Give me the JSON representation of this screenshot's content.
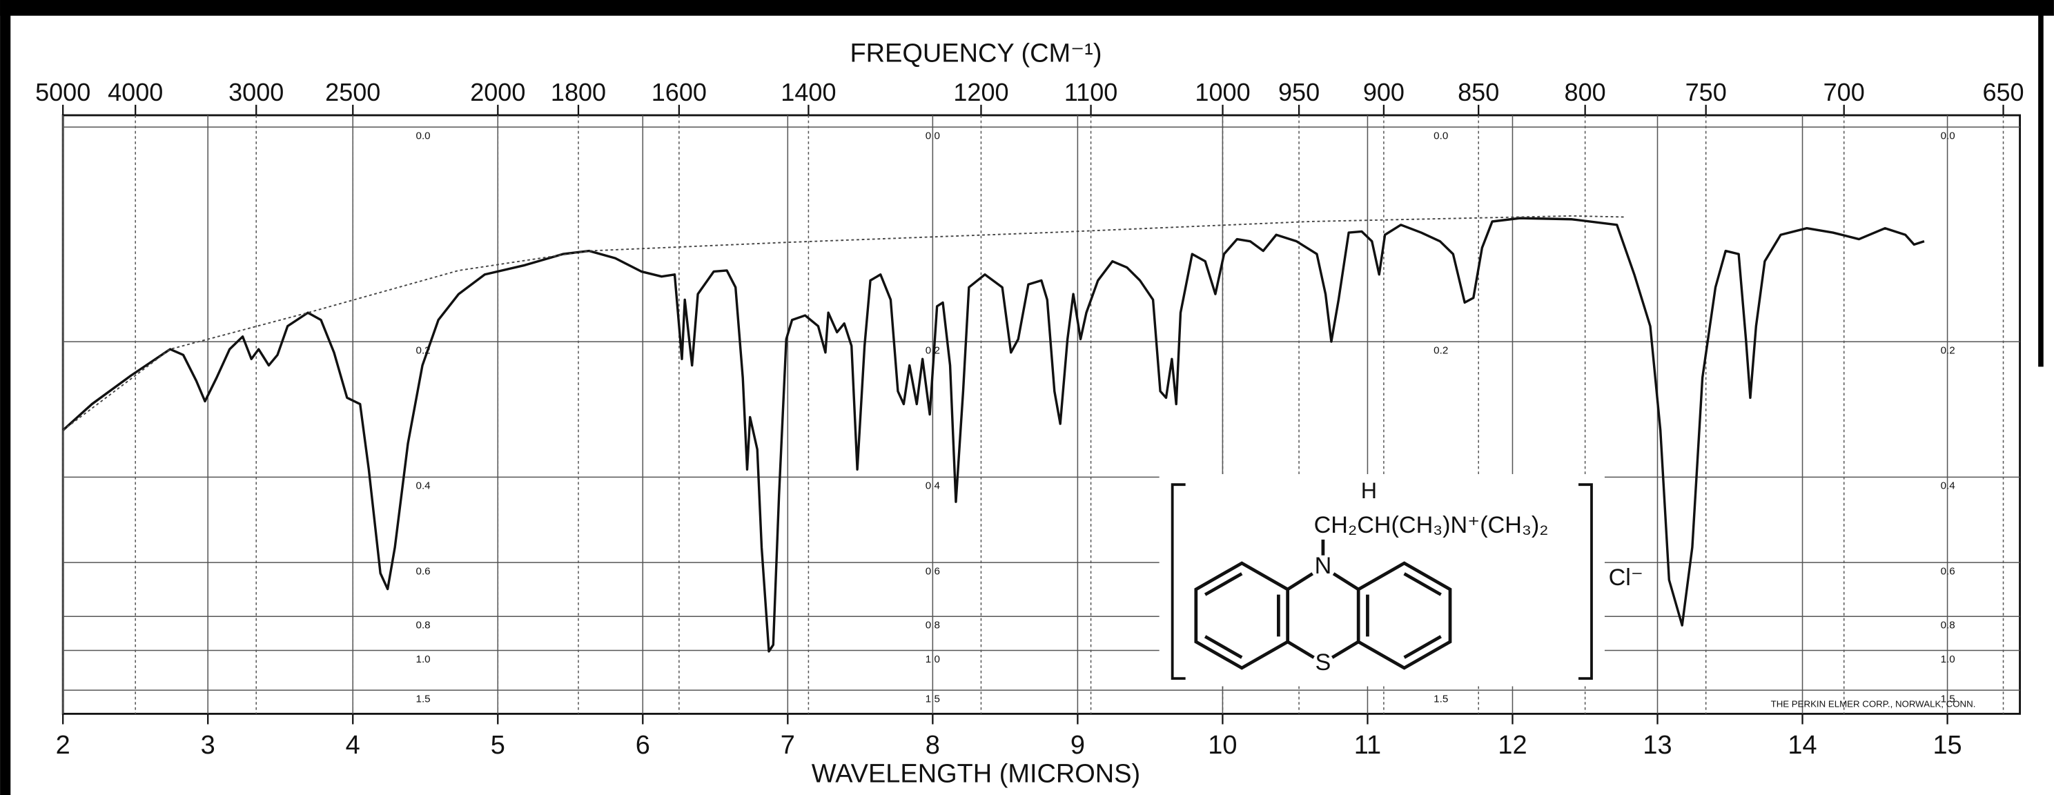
{
  "chart_data": {
    "type": "line",
    "title": "FREQUENCY (CM⁻¹)",
    "x_label": "WAVELENGTH (MICRONS)",
    "xlim": [
      2,
      15.5
    ],
    "xticks": [
      2,
      3,
      4,
      5,
      6,
      7,
      8,
      9,
      10,
      11,
      12,
      13,
      14,
      15
    ],
    "x2lim": [
      5000,
      645.2
    ],
    "x2ticks": [
      5000,
      4000,
      3000,
      2500,
      2000,
      1800,
      1600,
      1400,
      1200,
      1100,
      1000,
      950,
      900,
      850,
      800,
      750,
      700,
      650
    ],
    "x2_scale": "reciprocal",
    "ylim": [
      0,
      1.5
    ],
    "y_scale": "absorbance",
    "yticks": [
      {
        "value": 0,
        "label": "0.0"
      },
      0.2,
      0.4,
      0.6,
      0.8,
      {
        "value": 1,
        "label": "1.0"
      },
      {
        "value": 1.5,
        "label": "1.5"
      }
    ],
    "grid": true,
    "series": [
      {
        "color": "#111111",
        "x": [
          2.0,
          2.2,
          2.47,
          2.74,
          2.83,
          2.92,
          2.98,
          3.06,
          3.15,
          3.24,
          3.3,
          3.35,
          3.42,
          3.48,
          3.55,
          3.69,
          3.78,
          3.87,
          3.96,
          4.05,
          4.11,
          4.19,
          4.24,
          4.29,
          4.38,
          4.48,
          4.59,
          4.73,
          4.91,
          5.18,
          5.45,
          5.63,
          5.81,
          5.99,
          6.13,
          6.22,
          6.27,
          6.29,
          6.34,
          6.38,
          6.49,
          6.58,
          6.64,
          6.69,
          6.72,
          6.74,
          6.79,
          6.82,
          6.87,
          6.9,
          6.94,
          6.99,
          7.03,
          7.12,
          7.21,
          7.26,
          7.28,
          7.34,
          7.39,
          7.44,
          7.48,
          7.53,
          7.57,
          7.64,
          7.71,
          7.76,
          7.8,
          7.84,
          7.89,
          7.93,
          7.98,
          8.03,
          8.07,
          8.12,
          8.16,
          8.21,
          8.25,
          8.36,
          8.48,
          8.54,
          8.59,
          8.66,
          8.75,
          8.79,
          8.84,
          8.88,
          8.93,
          8.97,
          9.02,
          9.06,
          9.14,
          9.24,
          9.34,
          9.43,
          9.52,
          9.57,
          9.61,
          9.65,
          9.68,
          9.71,
          9.79,
          9.88,
          9.95,
          10.01,
          10.1,
          10.19,
          10.28,
          10.37,
          10.51,
          10.65,
          10.71,
          10.75,
          10.8,
          10.87,
          10.96,
          11.03,
          11.08,
          11.12,
          11.23,
          11.37,
          11.5,
          11.59,
          11.67,
          11.73,
          11.79,
          11.86,
          12.05,
          12.41,
          12.72,
          12.84,
          12.95,
          13.02,
          13.08,
          13.17,
          13.24,
          13.31,
          13.4,
          13.47,
          13.56,
          13.61,
          13.64,
          13.68,
          13.74,
          13.85,
          14.03,
          14.21,
          14.39,
          14.57,
          14.71,
          14.77,
          14.84
        ],
        "values": [
          0.32,
          0.281,
          0.242,
          0.209,
          0.216,
          0.249,
          0.277,
          0.245,
          0.209,
          0.194,
          0.221,
          0.209,
          0.229,
          0.216,
          0.182,
          0.167,
          0.175,
          0.213,
          0.272,
          0.281,
          0.386,
          0.633,
          0.687,
          0.557,
          0.341,
          0.229,
          0.175,
          0.147,
          0.127,
          0.118,
          0.107,
          0.104,
          0.111,
          0.124,
          0.129,
          0.127,
          0.221,
          0.153,
          0.229,
          0.147,
          0.124,
          0.123,
          0.14,
          0.245,
          0.386,
          0.3,
          0.351,
          0.557,
          1.007,
          0.96,
          0.435,
          0.197,
          0.175,
          0.17,
          0.182,
          0.213,
          0.167,
          0.189,
          0.179,
          0.205,
          0.386,
          0.205,
          0.133,
          0.127,
          0.153,
          0.263,
          0.281,
          0.229,
          0.281,
          0.221,
          0.296,
          0.16,
          0.156,
          0.229,
          0.449,
          0.263,
          0.14,
          0.127,
          0.14,
          0.213,
          0.197,
          0.137,
          0.133,
          0.153,
          0.263,
          0.31,
          0.197,
          0.147,
          0.197,
          0.167,
          0.133,
          0.114,
          0.12,
          0.133,
          0.153,
          0.263,
          0.272,
          0.221,
          0.281,
          0.167,
          0.107,
          0.114,
          0.147,
          0.107,
          0.093,
          0.095,
          0.104,
          0.089,
          0.095,
          0.107,
          0.147,
          0.2,
          0.153,
          0.087,
          0.086,
          0.095,
          0.127,
          0.089,
          0.08,
          0.087,
          0.095,
          0.107,
          0.156,
          0.151,
          0.101,
          0.077,
          0.074,
          0.075,
          0.08,
          0.127,
          0.182,
          0.32,
          0.655,
          0.844,
          0.557,
          0.245,
          0.14,
          0.104,
          0.107,
          0.197,
          0.272,
          0.182,
          0.114,
          0.089,
          0.083,
          0.087,
          0.093,
          0.083,
          0.089,
          0.098,
          0.095
        ]
      },
      {
        "color": "#444444",
        "dash": true,
        "x": [
          2.0,
          2.74,
          3.69,
          4.73,
          5.63,
          6.99,
          8.79,
          10.6,
          12.41,
          12.77
        ],
        "values": [
          0.32,
          0.209,
          0.167,
          0.123,
          0.104,
          0.096,
          0.087,
          0.077,
          0.072,
          0.073
        ]
      }
    ],
    "annotations": {
      "structure_h": "H",
      "structure_chain": "CH₂CH(CH₃)N⁺(CH₃)₂",
      "structure_n": "N",
      "structure_s": "S",
      "counter_ion": "Cl⁻",
      "credit": "THE PERKIN  ELMER CORP., NORWALK, CONN."
    }
  }
}
